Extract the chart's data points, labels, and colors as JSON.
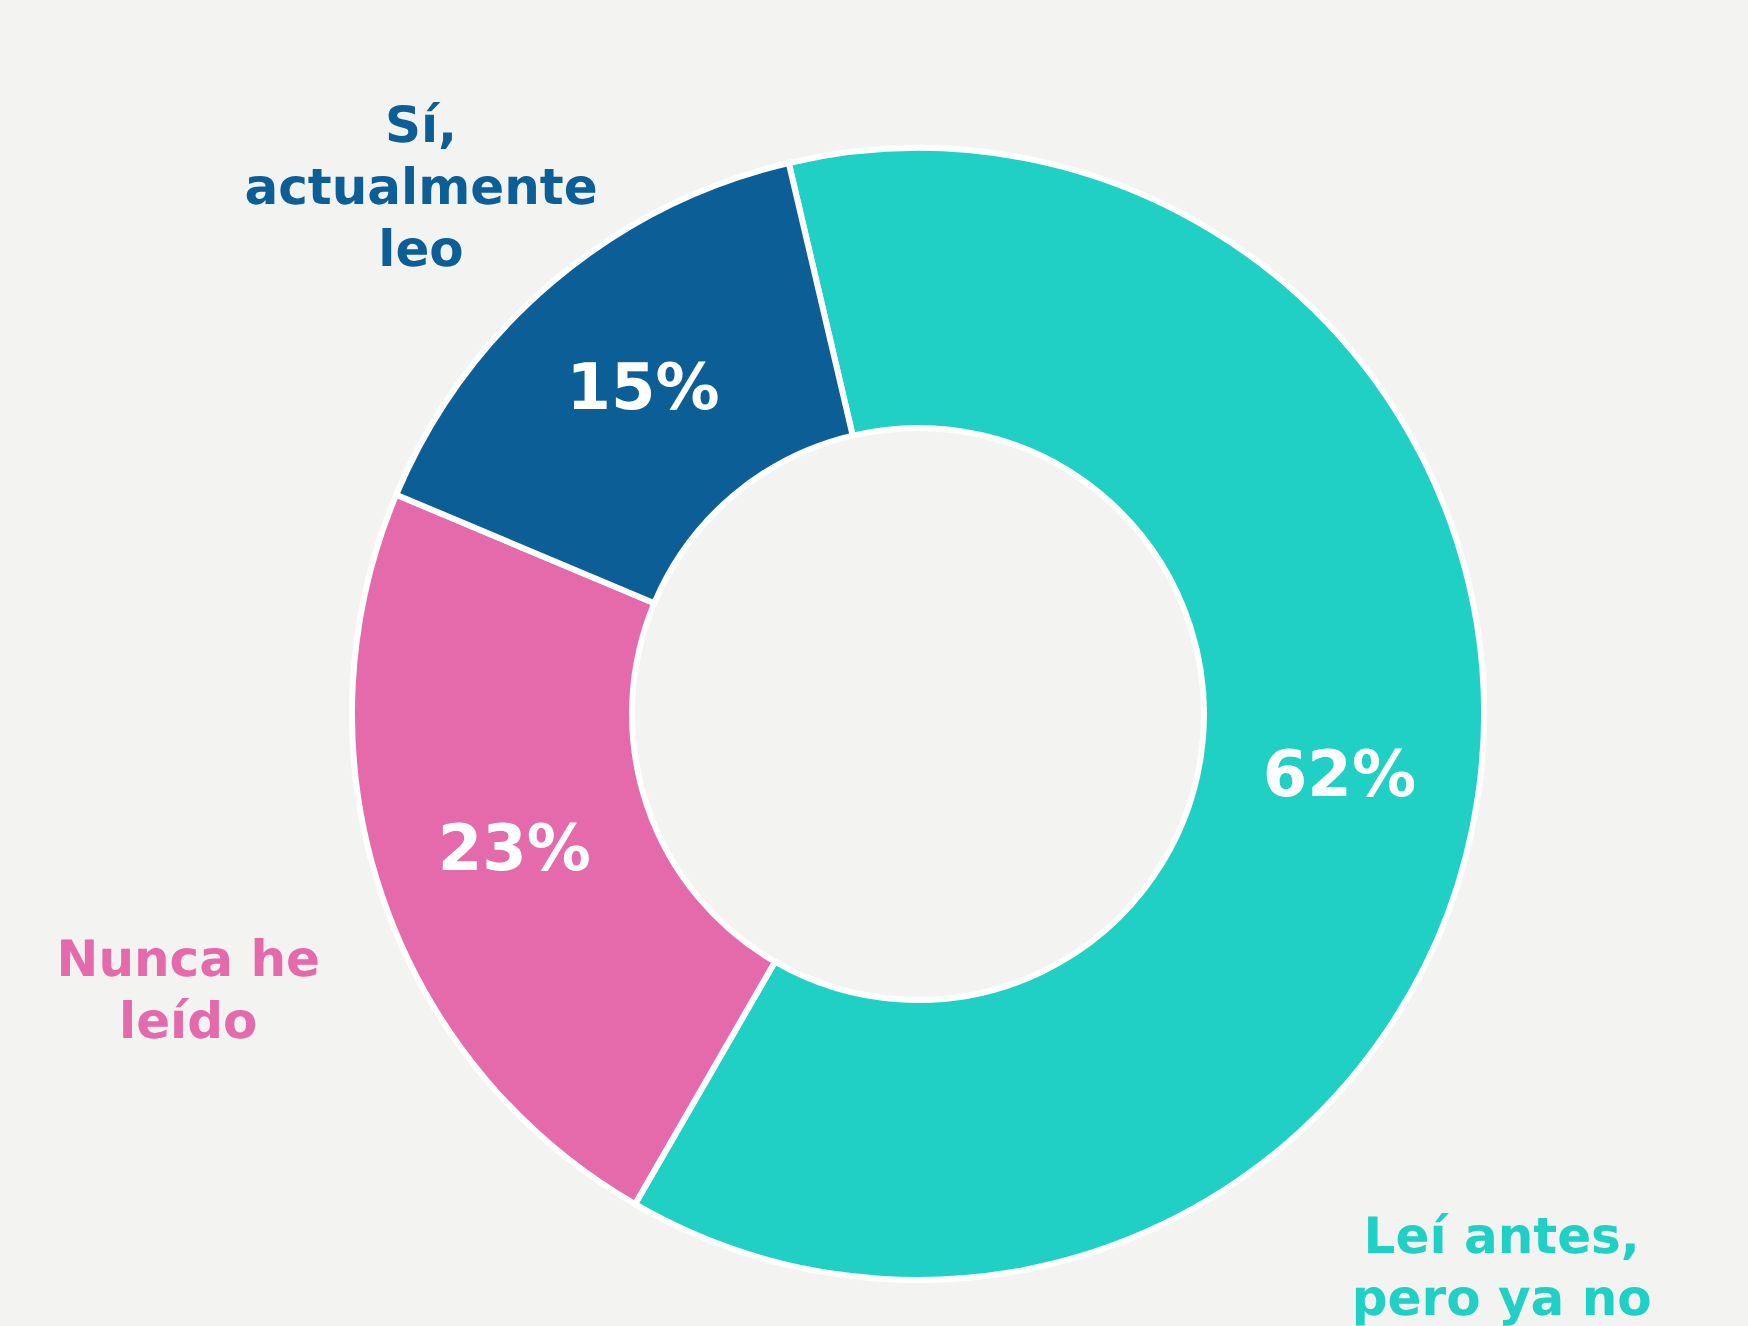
{
  "chart_data": {
    "type": "donut",
    "categories": [
      "Leí antes, pero ya no",
      "Nunca he leído",
      "Sí, actualmente leo"
    ],
    "values": [
      62,
      23,
      15
    ],
    "colors": [
      "#20d0c4",
      "#e46aab",
      "#0b5e96"
    ],
    "value_labels": [
      "62%",
      "23%",
      "15%"
    ]
  }
}
